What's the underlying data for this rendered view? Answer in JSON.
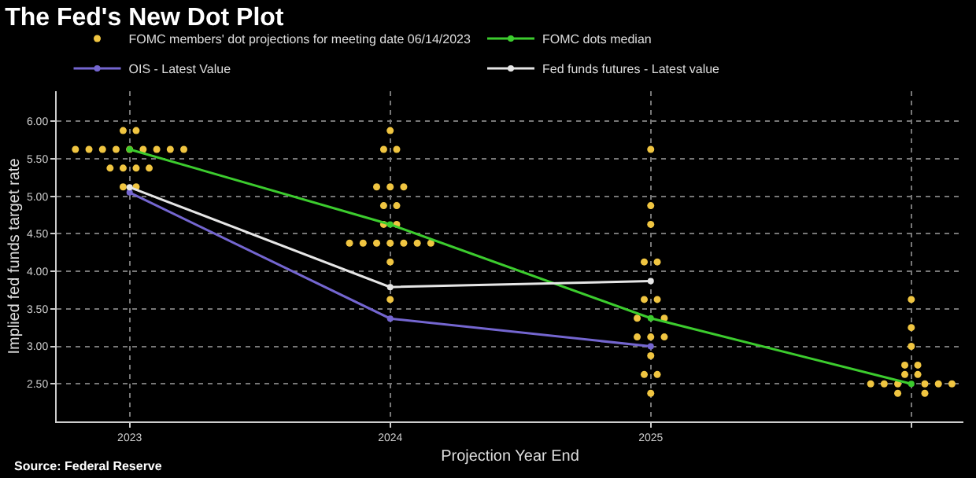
{
  "chart_data": {
    "type": "scatter",
    "title": "The Fed's New Dot Plot",
    "xlabel": "Projection Year End",
    "ylabel": "Implied fed funds target rate",
    "annotations": [
      "Source: Federal Reserve"
    ],
    "xlim": [
      2022.72,
      2026.2
    ],
    "xticks": [
      2023,
      2024,
      2025,
      {
        "value": 2026,
        "label": null
      }
    ],
    "ylim": [
      2.0,
      6.4
    ],
    "yticks": [
      {
        "value": 2.5,
        "label": "2.50"
      },
      {
        "value": 3.0,
        "label": "3.00"
      },
      {
        "value": 3.5,
        "label": "3.50"
      },
      {
        "value": 4.0,
        "label": "4.00"
      },
      {
        "value": 4.5,
        "label": "4.50"
      },
      {
        "value": 5.0,
        "label": "5.00"
      },
      {
        "value": 5.5,
        "label": "5.50"
      },
      {
        "value": 6.0,
        "label": "6.00"
      }
    ],
    "grid": true,
    "legend": "top left",
    "marker": "circle",
    "series": [
      {
        "name": "FOMC members' dot projections for meeting date 06/14/2023",
        "color": "#f0c541",
        "x": [
          2022.975,
          2023.025,
          2022.792,
          2022.844,
          2022.896,
          2022.948,
          2023,
          2023.052,
          2023.104,
          2023.156,
          2023.208,
          2022.925,
          2022.975,
          2023.025,
          2023.075,
          2022.975,
          2023.025,
          2024,
          2023.975,
          2024.025,
          2023.948,
          2024,
          2024.052,
          2023.975,
          2024.025,
          2023.975,
          2024.025,
          2023.844,
          2023.896,
          2023.948,
          2024,
          2024.052,
          2024.104,
          2024.156,
          2024,
          2024,
          2025,
          2025,
          2025,
          2024.975,
          2025.025,
          2024.975,
          2025.025,
          2024.948,
          2025.052,
          2024.948,
          2025,
          2025.052,
          2025,
          2024.975,
          2025.025,
          2025,
          2026,
          2026,
          2026,
          2025.975,
          2026.025,
          2025.975,
          2026.025,
          2025.844,
          2025.896,
          2025.948,
          2026.052,
          2026.104,
          2026.156,
          2025.948,
          2026.052
        ],
        "values": [
          5.875,
          5.875,
          5.625,
          5.625,
          5.625,
          5.625,
          5.625,
          5.625,
          5.625,
          5.625,
          5.625,
          5.375,
          5.375,
          5.375,
          5.375,
          5.125,
          5.125,
          5.875,
          5.625,
          5.625,
          5.125,
          5.125,
          5.125,
          4.875,
          4.875,
          4.625,
          4.625,
          4.375,
          4.375,
          4.375,
          4.375,
          4.375,
          4.375,
          4.375,
          4.125,
          3.625,
          5.625,
          4.875,
          4.625,
          4.125,
          4.125,
          3.625,
          3.625,
          3.375,
          3.375,
          3.125,
          3.125,
          3.125,
          2.875,
          2.625,
          2.625,
          2.375,
          3.625,
          3.25,
          3.0,
          2.75,
          2.75,
          2.625,
          2.625,
          2.5,
          2.5,
          2.5,
          2.5,
          2.5,
          2.5,
          2.375,
          2.375
        ]
      },
      {
        "name": "FOMC dots median",
        "type": "line",
        "color": "#3ccc2e",
        "x": [
          2023,
          2024,
          2025,
          2026
        ],
        "values": [
          5.625,
          4.625,
          3.375,
          2.5
        ]
      },
      {
        "name": "OIS - Latest Value",
        "type": "line",
        "color": "#7466d0",
        "x": [
          2023,
          2024,
          2025
        ],
        "values": [
          5.05,
          3.37,
          3.0
        ]
      },
      {
        "name": "Fed funds futures - Latest value",
        "type": "line",
        "color": "#e6e6e6",
        "x": [
          2023,
          2024,
          2025
        ],
        "values": [
          5.12,
          3.79,
          3.87
        ]
      }
    ]
  }
}
